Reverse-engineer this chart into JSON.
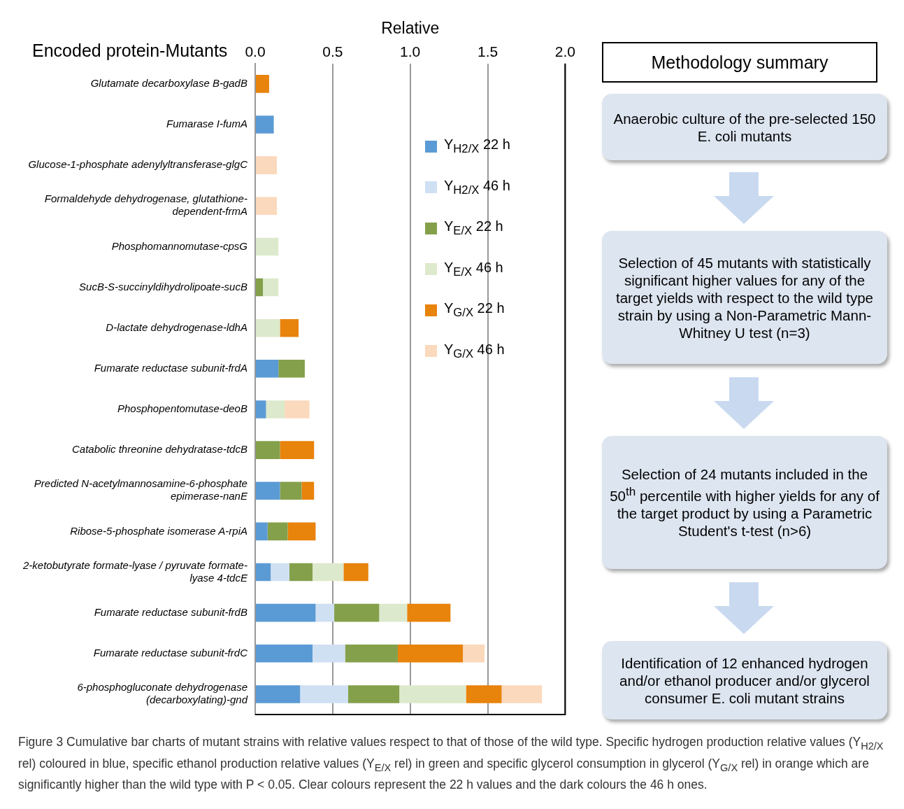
{
  "chart_data": [
    {
      "type": "bar",
      "orientation": "horizontal",
      "stacked": true,
      "xlabel": "Relative",
      "ylabel": "Encoded protein-Mutants",
      "categories": [
        "Glutamate decarboxylase B-gadB",
        "Fumarase I-fumA",
        "Glucose-1-phosphate adenylyltransferase-glgC",
        "Formaldehyde dehydrogenase, glutathione-dependent-frmA",
        "Phosphomannomutase-cpsG",
        "SucB-S-succinyldihydrolipoate-sucB",
        "D-lactate dehydrogenase-ldhA",
        "Fumarate reductase subunit-frdA",
        "Phosphopentomutase-deoB",
        "Catabolic threonine dehydratase-tdcB",
        "Predicted N-acetylmannosamine-6-phosphate epimerase-nanE",
        "Ribose-5-phosphate isomerase A-rpiA",
        "2-ketobutyrate formate-lyase / pyruvate formate-lyase 4-tdcE",
        "Fumarate reductase subunit-frdB",
        "Fumarate reductase subunit-frdC",
        "6-phosphogluconate dehydrogenase (decarboxylating)-gnd"
      ],
      "series": [
        {
          "name": "Y$_{H2/X}$ 22 h",
          "color": "#5b9bd5",
          "values": [
            null,
            0.12,
            null,
            null,
            null,
            null,
            null,
            0.15,
            0.07,
            null,
            0.16,
            0.08,
            0.1,
            0.39,
            0.37,
            0.29
          ]
        },
        {
          "name": "Y$_{H2/X}$ 46 h",
          "color": "#cfe0f3",
          "values": [
            null,
            null,
            null,
            null,
            null,
            null,
            null,
            null,
            null,
            null,
            null,
            null,
            0.12,
            0.12,
            0.21,
            0.31
          ]
        },
        {
          "name": "Y$_{E/X}$ 22 h",
          "color": "#84a04b",
          "values": [
            null,
            null,
            null,
            null,
            null,
            0.05,
            null,
            0.17,
            null,
            0.16,
            0.14,
            0.13,
            0.15,
            0.29,
            0.34,
            0.33
          ]
        },
        {
          "name": "Y$_{E/X}$ 46 h",
          "color": "#dde9cc",
          "values": [
            null,
            null,
            null,
            null,
            0.15,
            0.1,
            0.16,
            null,
            0.12,
            null,
            null,
            null,
            0.2,
            0.18,
            null,
            0.43
          ]
        },
        {
          "name": "Y$_{G/X}$ 22 h",
          "color": "#e8830c",
          "values": [
            0.09,
            null,
            null,
            null,
            null,
            null,
            0.12,
            null,
            null,
            0.22,
            0.08,
            0.18,
            0.16,
            0.28,
            0.42,
            0.23
          ]
        },
        {
          "name": "Y$_{G/X}$ 46 h",
          "color": "#fbd9bc",
          "values": [
            null,
            null,
            0.14,
            0.14,
            null,
            null,
            null,
            null,
            0.16,
            null,
            null,
            null,
            null,
            null,
            0.14,
            0.26
          ]
        }
      ],
      "xlim": [
        0,
        2
      ],
      "xticks": [
        {
          "value": 0,
          "label": "0.0"
        },
        0.5,
        {
          "value": 1,
          "label": "1.0"
        },
        1.5,
        {
          "value": 2,
          "label": "2.0"
        }
      ],
      "grid": "x",
      "legend": "top right",
      "annotations": [
        "Figure 3  Cumulative bar charts of mutant strains with relative values respect to that of those of the wild type. Specific hydrogen production relative values (Y$_{H2/X}$ rel) coloured in blue, specific ethanol production relative values (Y$_{E/X}$ rel) in green and specific glycerol consumption in glycerol (Y$_{G/X}$ rel) in orange which are significantly higher than the wild type with P < 0.05. Clear colours represent the 22 h values and the dark colours the 46 h ones."
      ]
    },
    {
      "type": "other",
      "title": "Methodology summary",
      "annotations": [
        "Anaerobic culture of the  pre-selected 150 E. coli mutants",
        "Selection of 45 mutants with statistically significant higher values for any of the target yields with respect to the wild type strain by using a Non-Parametric Mann-Whitney U test (n=3)",
        "Selection of 24 mutants included in the 50$^{th}$ percentile with higher yields for any of the target product by using a Parametric Student's t-test (n>6)",
        "Identification of 12 enhanced hydrogen and/or ethanol producer and/or glycerol consumer E. coli mutant strains"
      ]
    }
  ]
}
